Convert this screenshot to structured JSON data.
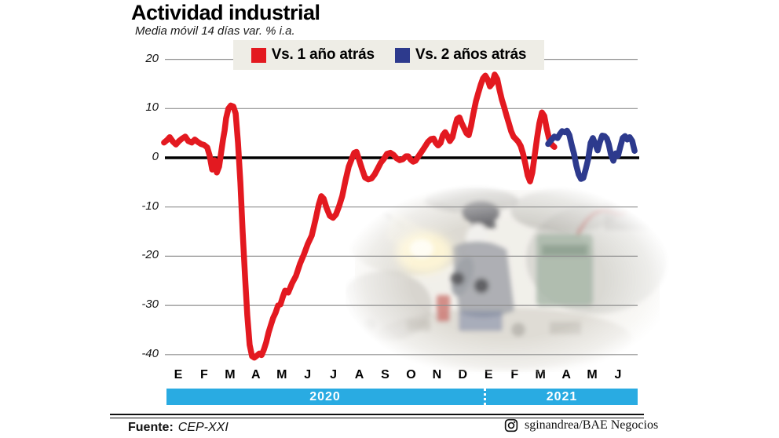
{
  "title": "Actividad industrial",
  "subtitle": "Media móvil 14 días var. % i.a.",
  "colors": {
    "series_red": "#e31920",
    "series_blue": "#2d3a8d",
    "year_band": "#29abe2",
    "legend_bg": "#eeede6",
    "gridline": "#8f8f8f",
    "zero_line": "#000000"
  },
  "legend": [
    {
      "label": "Vs. 1 año atrás",
      "color": "#e31920"
    },
    {
      "label": "Vs. 2 años atrás",
      "color": "#2d3a8d"
    }
  ],
  "footer": {
    "source_label": "Fuente:",
    "source_value": "CEP-XXI",
    "instagram_icon": "instagram-icon",
    "credit": "sginandrea/BAE Negocios"
  },
  "chart_data": {
    "type": "line",
    "title": "Actividad industrial",
    "subtitle": "Media móvil 14 días var. % i.a.",
    "ylabel": "var. % i.a.",
    "ylim": [
      -40,
      20
    ],
    "yticks": [
      20,
      10,
      0,
      -10,
      -20,
      -30,
      -40
    ],
    "grid": "horizontal",
    "legend_position": "top",
    "x_axis": {
      "months": [
        "E",
        "F",
        "M",
        "A",
        "M",
        "J",
        "J",
        "A",
        "S",
        "O",
        "N",
        "D",
        "E",
        "F",
        "M",
        "A",
        "M",
        "J"
      ],
      "years": [
        {
          "label": "2020",
          "span": [
            0,
            11
          ]
        },
        {
          "label": "2021",
          "span": [
            12,
            17
          ]
        }
      ]
    },
    "series": [
      {
        "name": "Vs. 1 año atrás",
        "color": "#e31920",
        "points": [
          [
            -0.55,
            3.1
          ],
          [
            -0.43,
            3.6
          ],
          [
            -0.33,
            4.2
          ],
          [
            -0.21,
            3.3
          ],
          [
            -0.09,
            2.7
          ],
          [
            0.03,
            3.4
          ],
          [
            0.15,
            3.9
          ],
          [
            0.27,
            4.3
          ],
          [
            0.39,
            3.4
          ],
          [
            0.52,
            3.1
          ],
          [
            0.64,
            3.7
          ],
          [
            0.76,
            3.2
          ],
          [
            0.88,
            2.8
          ],
          [
            1.0,
            2.6
          ],
          [
            1.12,
            2.1
          ],
          [
            1.21,
            0.5
          ],
          [
            1.31,
            -2.4
          ],
          [
            1.4,
            -0.5
          ],
          [
            1.49,
            -3.0
          ],
          [
            1.58,
            -1.8
          ],
          [
            1.67,
            1.5
          ],
          [
            1.73,
            3.7
          ],
          [
            1.79,
            5.5
          ],
          [
            1.85,
            8.0
          ],
          [
            1.94,
            10.0
          ],
          [
            2.03,
            10.6
          ],
          [
            2.13,
            10.4
          ],
          [
            2.22,
            9.0
          ],
          [
            2.31,
            3.0
          ],
          [
            2.4,
            -5.0
          ],
          [
            2.49,
            -15.0
          ],
          [
            2.58,
            -24.0
          ],
          [
            2.67,
            -32.0
          ],
          [
            2.76,
            -38.0
          ],
          [
            2.85,
            -40.3
          ],
          [
            2.94,
            -40.6
          ],
          [
            3.04,
            -40.2
          ],
          [
            3.13,
            -39.8
          ],
          [
            3.22,
            -40.1
          ],
          [
            3.31,
            -39.0
          ],
          [
            3.4,
            -37.5
          ],
          [
            3.49,
            -35.5
          ],
          [
            3.58,
            -34.0
          ],
          [
            3.67,
            -32.5
          ],
          [
            3.76,
            -31.5
          ],
          [
            3.86,
            -30.0
          ],
          [
            3.95,
            -29.8
          ],
          [
            4.04,
            -28.3
          ],
          [
            4.13,
            -27.0
          ],
          [
            4.25,
            -27.4
          ],
          [
            4.4,
            -25.5
          ],
          [
            4.55,
            -24.0
          ],
          [
            4.71,
            -21.5
          ],
          [
            4.86,
            -19.6
          ],
          [
            5.01,
            -17.5
          ],
          [
            5.16,
            -15.8
          ],
          [
            5.31,
            -12.5
          ],
          [
            5.43,
            -9.5
          ],
          [
            5.53,
            -7.8
          ],
          [
            5.62,
            -8.3
          ],
          [
            5.74,
            -10.3
          ],
          [
            5.86,
            -11.8
          ],
          [
            5.98,
            -12.2
          ],
          [
            6.1,
            -11.5
          ],
          [
            6.22,
            -9.8
          ],
          [
            6.34,
            -7.8
          ],
          [
            6.47,
            -4.5
          ],
          [
            6.59,
            -1.8
          ],
          [
            6.71,
            -0.2
          ],
          [
            6.8,
            1.0
          ],
          [
            6.89,
            1.2
          ],
          [
            6.98,
            -0.2
          ],
          [
            7.1,
            -2.2
          ],
          [
            7.22,
            -4.0
          ],
          [
            7.35,
            -4.4
          ],
          [
            7.47,
            -4.2
          ],
          [
            7.59,
            -3.4
          ],
          [
            7.71,
            -2.2
          ],
          [
            7.83,
            -1.0
          ],
          [
            7.95,
            -0.2
          ],
          [
            8.07,
            0.8
          ],
          [
            8.2,
            1.0
          ],
          [
            8.32,
            0.6
          ],
          [
            8.44,
            -0.1
          ],
          [
            8.56,
            -0.5
          ],
          [
            8.68,
            -0.3
          ],
          [
            8.8,
            0.3
          ],
          [
            8.89,
            0.3
          ],
          [
            8.99,
            -0.4
          ],
          [
            9.08,
            -0.8
          ],
          [
            9.17,
            -0.6
          ],
          [
            9.26,
            0.1
          ],
          [
            9.35,
            0.8
          ],
          [
            9.44,
            1.5
          ],
          [
            9.53,
            2.2
          ],
          [
            9.65,
            3.2
          ],
          [
            9.77,
            3.8
          ],
          [
            9.87,
            3.9
          ],
          [
            9.96,
            3.0
          ],
          [
            10.05,
            2.5
          ],
          [
            10.14,
            3.0
          ],
          [
            10.23,
            4.6
          ],
          [
            10.32,
            5.2
          ],
          [
            10.41,
            4.4
          ],
          [
            10.5,
            3.4
          ],
          [
            10.6,
            4.2
          ],
          [
            10.69,
            6.2
          ],
          [
            10.78,
            7.9
          ],
          [
            10.87,
            8.2
          ],
          [
            10.96,
            7.0
          ],
          [
            11.05,
            6.0
          ],
          [
            11.14,
            5.0
          ],
          [
            11.23,
            4.6
          ],
          [
            11.32,
            6.5
          ],
          [
            11.41,
            9.0
          ],
          [
            11.51,
            11.5
          ],
          [
            11.6,
            13.2
          ],
          [
            11.69,
            14.8
          ],
          [
            11.78,
            16.1
          ],
          [
            11.87,
            16.7
          ],
          [
            11.96,
            15.9
          ],
          [
            12.05,
            14.5
          ],
          [
            12.14,
            15.1
          ],
          [
            12.23,
            16.9
          ],
          [
            12.33,
            16.0
          ],
          [
            12.42,
            13.8
          ],
          [
            12.51,
            11.8
          ],
          [
            12.6,
            10.3
          ],
          [
            12.69,
            8.6
          ],
          [
            12.78,
            7.0
          ],
          [
            12.87,
            5.4
          ],
          [
            12.96,
            4.3
          ],
          [
            13.05,
            3.8
          ],
          [
            13.14,
            3.3
          ],
          [
            13.24,
            2.4
          ],
          [
            13.33,
            0.8
          ],
          [
            13.42,
            -1.3
          ],
          [
            13.51,
            -3.6
          ],
          [
            13.6,
            -4.8
          ],
          [
            13.69,
            -3.0
          ],
          [
            13.78,
            0.5
          ],
          [
            13.87,
            4.0
          ],
          [
            13.96,
            7.0
          ],
          [
            14.06,
            9.2
          ],
          [
            14.15,
            8.5
          ],
          [
            14.24,
            6.0
          ],
          [
            14.33,
            4.0
          ],
          [
            14.42,
            2.8
          ],
          [
            14.54,
            2.2
          ]
        ]
      },
      {
        "name": "Vs. 2 años atrás",
        "color": "#2d3a8d",
        "points": [
          [
            14.3,
            2.8
          ],
          [
            14.42,
            3.6
          ],
          [
            14.54,
            4.3
          ],
          [
            14.66,
            4.0
          ],
          [
            14.75,
            4.8
          ],
          [
            14.84,
            5.4
          ],
          [
            14.94,
            5.2
          ],
          [
            15.03,
            5.5
          ],
          [
            15.12,
            4.6
          ],
          [
            15.21,
            2.6
          ],
          [
            15.3,
            0.8
          ],
          [
            15.39,
            -1.6
          ],
          [
            15.48,
            -3.4
          ],
          [
            15.57,
            -4.3
          ],
          [
            15.66,
            -4.1
          ],
          [
            15.76,
            -2.2
          ],
          [
            15.85,
            -0.2
          ],
          [
            15.94,
            3.0
          ],
          [
            16.03,
            4.0
          ],
          [
            16.12,
            2.8
          ],
          [
            16.21,
            1.5
          ],
          [
            16.3,
            3.2
          ],
          [
            16.39,
            4.5
          ],
          [
            16.48,
            4.4
          ],
          [
            16.57,
            3.9
          ],
          [
            16.64,
            2.8
          ],
          [
            16.73,
            0.6
          ],
          [
            16.82,
            -0.6
          ],
          [
            16.91,
            0.9
          ],
          [
            17.0,
            0.4
          ],
          [
            17.09,
            2.2
          ],
          [
            17.18,
            4.0
          ],
          [
            17.27,
            4.4
          ],
          [
            17.36,
            3.7
          ],
          [
            17.45,
            4.2
          ],
          [
            17.55,
            3.4
          ],
          [
            17.64,
            1.4
          ]
        ]
      }
    ]
  }
}
